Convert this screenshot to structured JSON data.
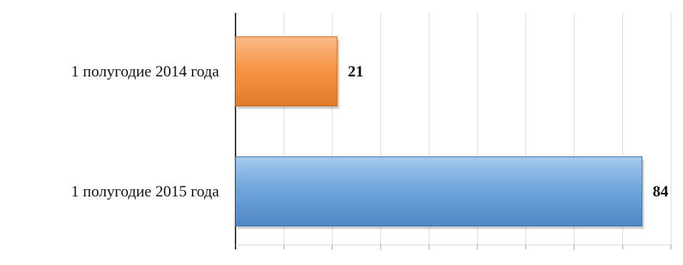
{
  "chart_data": {
    "type": "bar",
    "orientation": "horizontal",
    "categories": [
      "1 полугодие 2014 года",
      "1 полугодие 2015 года"
    ],
    "values": [
      21,
      84
    ],
    "data_labels": [
      "21",
      "84"
    ],
    "colors": [
      "#F79646",
      "#6FA8DC"
    ],
    "xlim": [
      0,
      90
    ],
    "grid": true,
    "legend": "none",
    "title": "",
    "xlabel": "",
    "ylabel": ""
  }
}
